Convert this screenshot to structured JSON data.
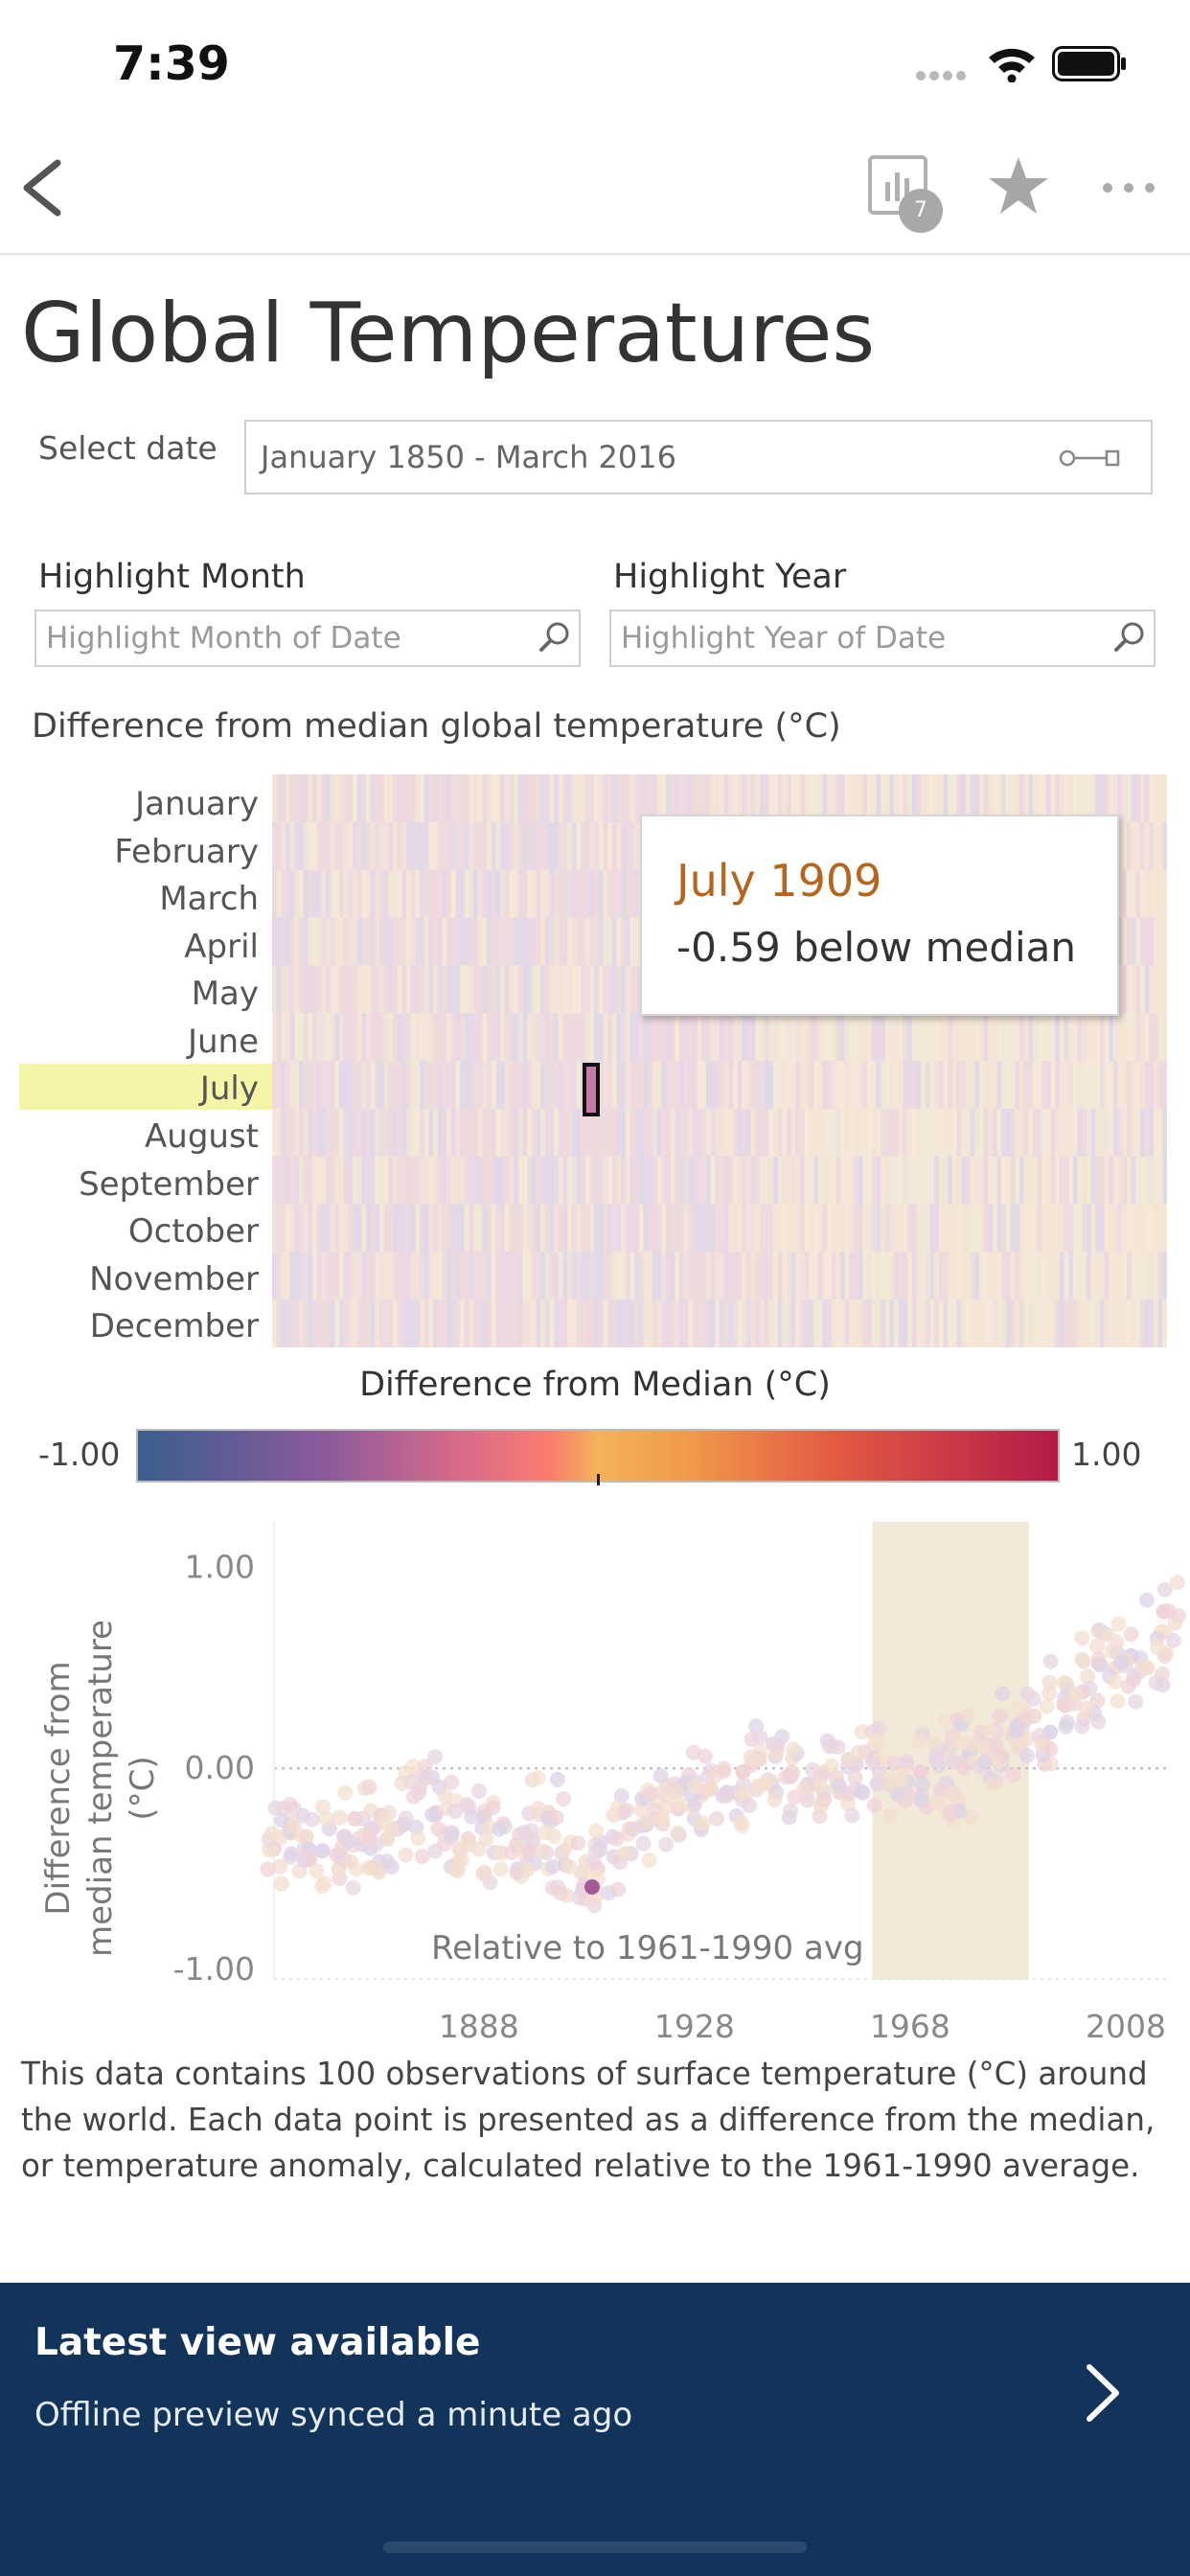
{
  "status": {
    "time": "7:39"
  },
  "nav": {
    "views_badge": "7"
  },
  "page": {
    "title": "Global Temperatures",
    "select_date_label": "Select date",
    "date_range": "January 1850 - March 2016",
    "highlight_month_label": "Highlight Month",
    "highlight_month_placeholder": "Highlight Month of Date",
    "highlight_year_label": "Highlight Year",
    "highlight_year_placeholder": "Highlight Year of Date",
    "heatmap_title": "Difference from median global temperature (°C)",
    "months": [
      "January",
      "February",
      "March",
      "April",
      "May",
      "June",
      "July",
      "August",
      "September",
      "October",
      "November",
      "December"
    ],
    "highlighted_month": "July",
    "tooltip": {
      "title": "July 1909",
      "value": "-0.59 below median"
    },
    "legend": {
      "title": "Difference from Median (°C)",
      "min": "-1.00",
      "max": "1.00"
    },
    "caption": "This data contains 100 observations of surface temperature (°C) around the world. Each data point is presented as a difference from the median, or temperature anomaly, calculated relative to the 1961-1990 average."
  },
  "chart_data": {
    "type": "scatter",
    "ylabel": "Difference from median temperature (°C)",
    "ylim": [
      -1.0,
      1.05
    ],
    "xlim": [
      1850,
      2016
    ],
    "x_ticks": [
      "1888",
      "1928",
      "1968",
      "2008"
    ],
    "y_ticks": [
      "1.00",
      "0.00",
      "-1.00"
    ],
    "reference_band": {
      "x_from": 1961,
      "x_to": 1990,
      "label": "Relative to 1961-1990 avg"
    },
    "highlight_point": {
      "x": 1909,
      "y": -0.59
    },
    "series": [
      {
        "x": [
          1850,
          1853,
          1856,
          1859,
          1862,
          1865,
          1868,
          1871,
          1874,
          1877,
          1880,
          1883,
          1886,
          1889,
          1892,
          1895,
          1898,
          1901,
          1904,
          1907,
          1910,
          1913,
          1916,
          1919,
          1922,
          1925,
          1928,
          1931,
          1934,
          1937,
          1940,
          1943,
          1946,
          1949,
          1952,
          1955,
          1958,
          1961,
          1964,
          1967,
          1970,
          1973,
          1976,
          1979,
          1982,
          1985,
          1988,
          1991,
          1994,
          1997,
          2000,
          2003,
          2006,
          2009,
          2012,
          2015
        ],
        "y": [
          -0.4,
          -0.28,
          -0.34,
          -0.41,
          -0.5,
          -0.25,
          -0.3,
          -0.35,
          -0.28,
          -0.1,
          -0.22,
          -0.32,
          -0.35,
          -0.24,
          -0.42,
          -0.38,
          -0.36,
          -0.22,
          -0.48,
          -0.52,
          -0.5,
          -0.44,
          -0.3,
          -0.28,
          -0.25,
          -0.2,
          -0.18,
          -0.1,
          -0.12,
          -0.02,
          0.05,
          0.06,
          -0.02,
          -0.08,
          -0.02,
          -0.12,
          0.02,
          0.05,
          -0.08,
          0.0,
          -0.02,
          0.06,
          -0.12,
          0.08,
          0.1,
          0.06,
          0.22,
          0.26,
          0.18,
          0.42,
          0.38,
          0.52,
          0.5,
          0.56,
          0.5,
          0.78
        ]
      }
    ]
  },
  "banner": {
    "title": "Latest view available",
    "subtitle": "Offline preview synced a minute ago"
  }
}
